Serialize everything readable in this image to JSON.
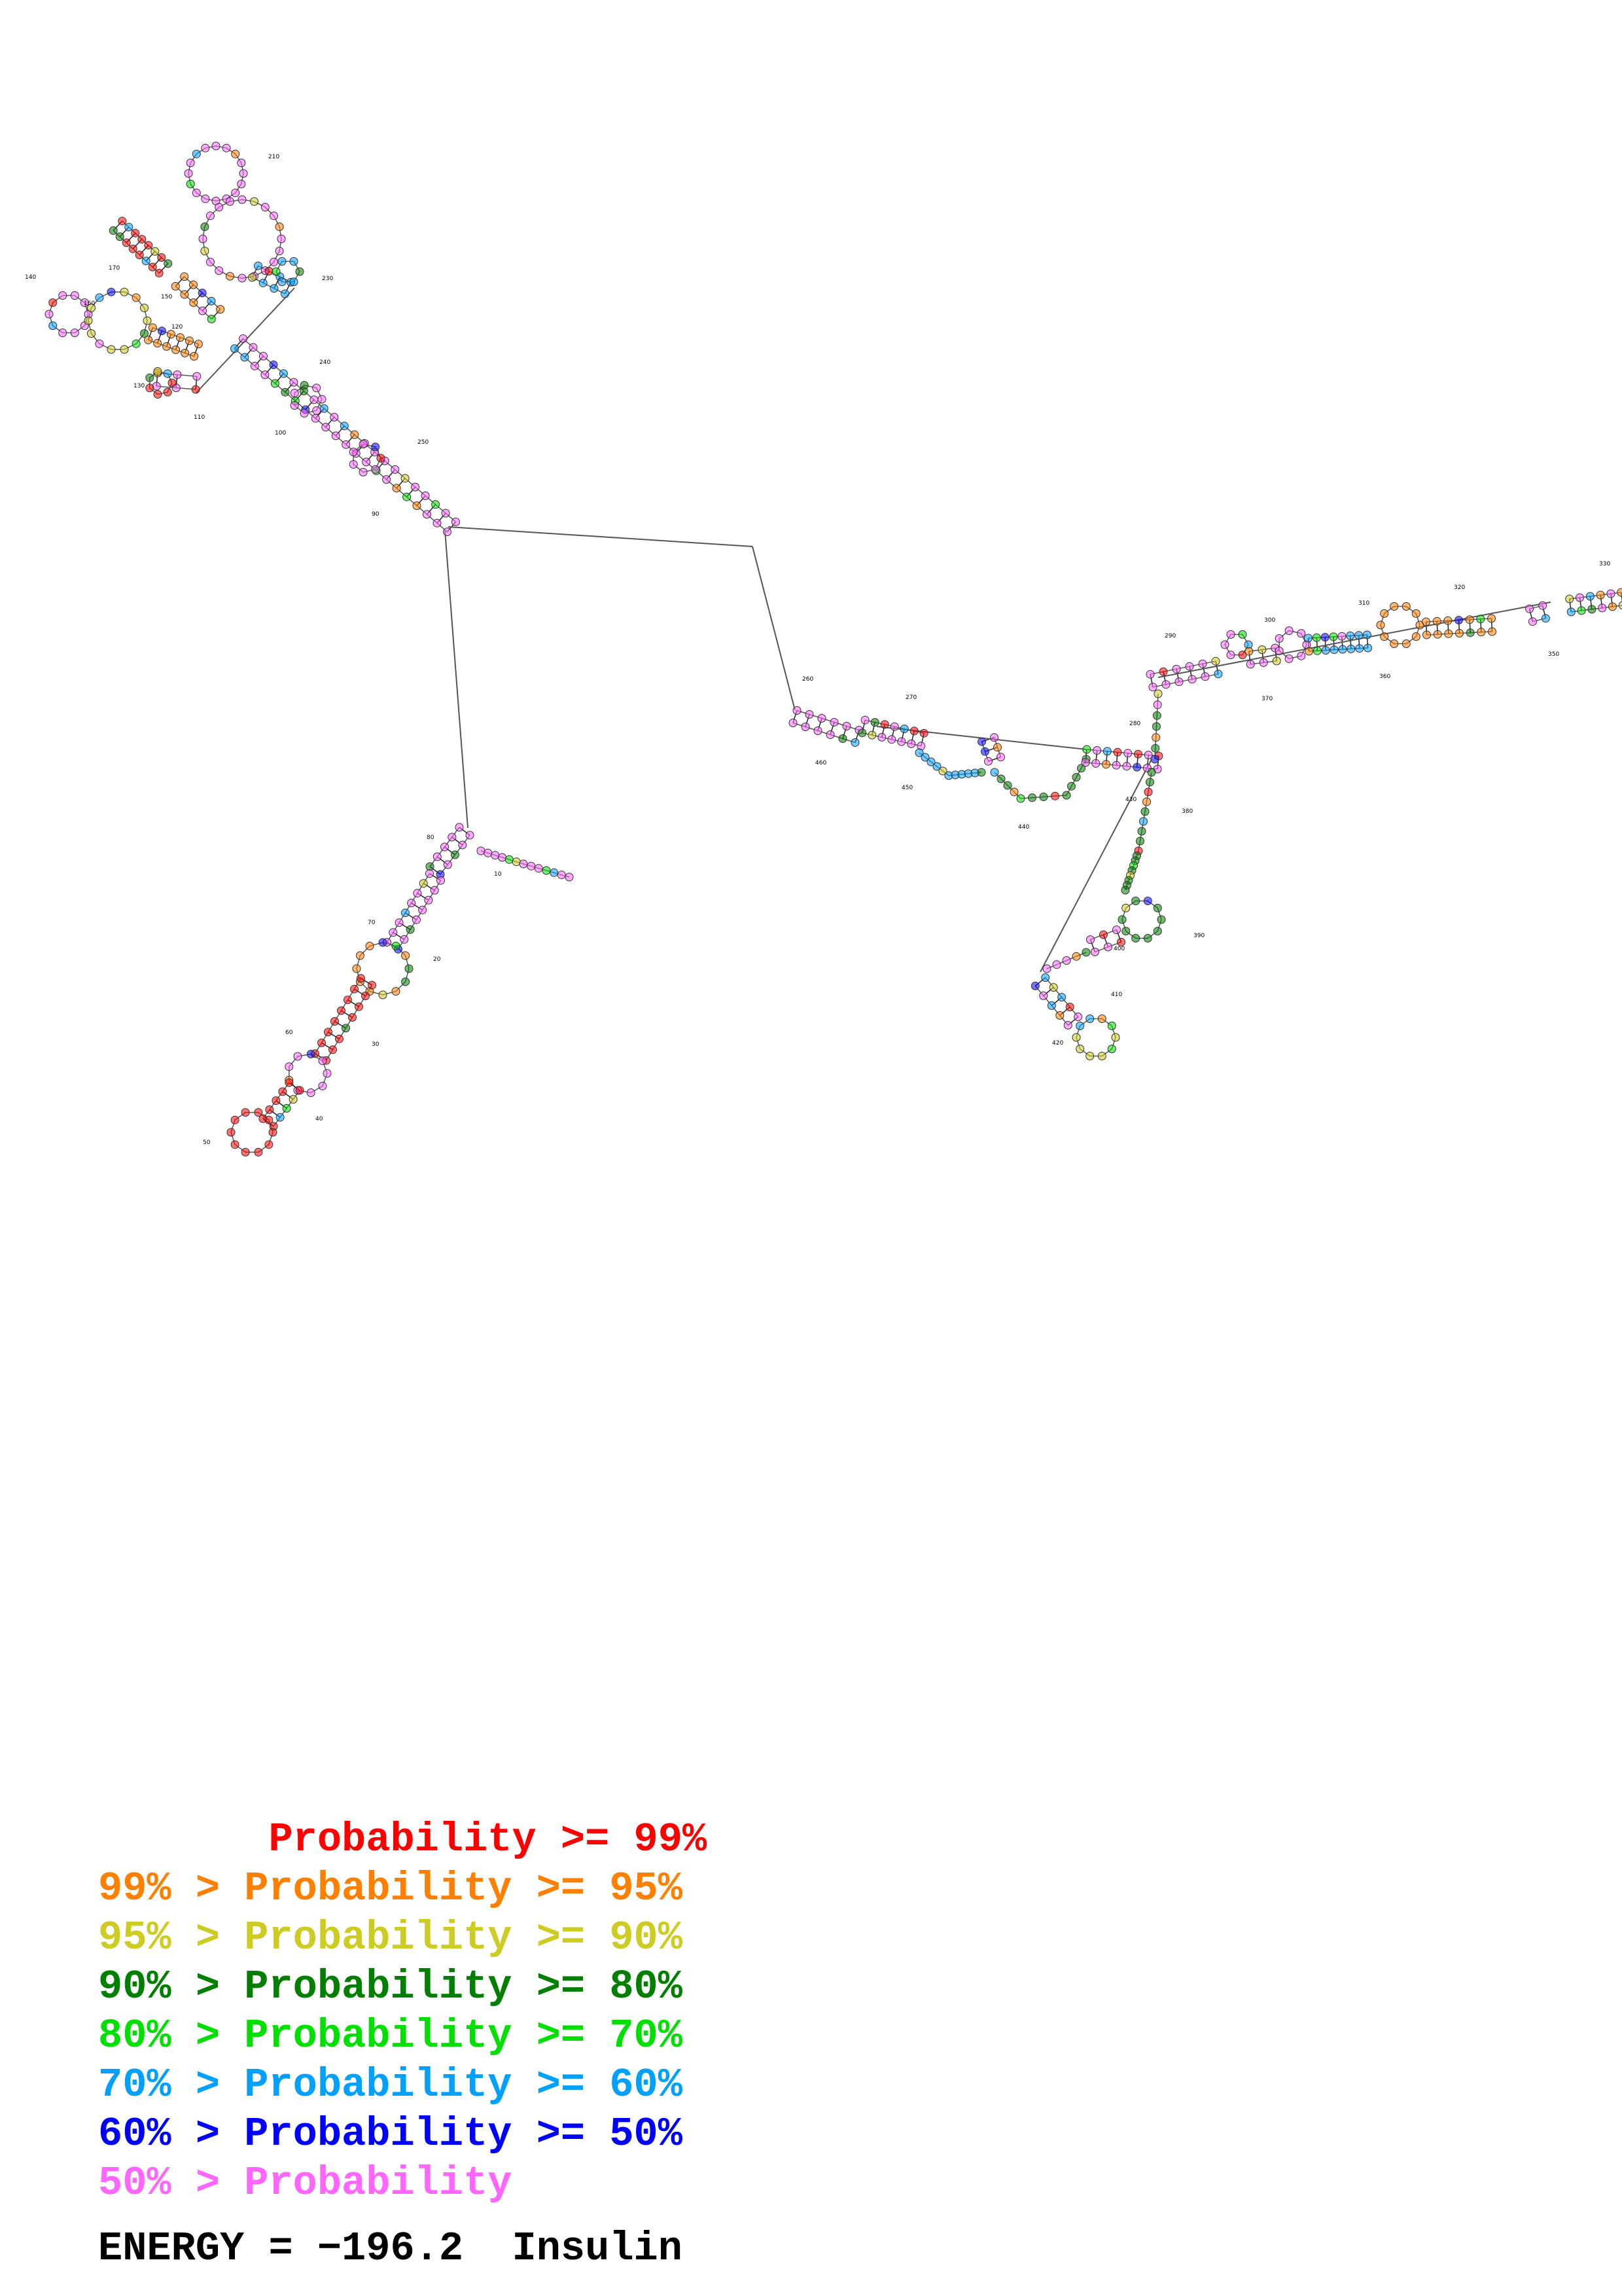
{
  "structure_labels": [
    "10",
    "20",
    "30",
    "40",
    "50",
    "60",
    "70",
    "80",
    "90",
    "100",
    "110",
    "120",
    "130",
    "140",
    "150",
    "160",
    "170",
    "210",
    "230",
    "240",
    "250",
    "260",
    "270",
    "280",
    "290",
    "300",
    "310",
    "320",
    "330",
    "350",
    "360",
    "370",
    "380",
    "390",
    "400",
    "410",
    "420",
    "430",
    "440",
    "450",
    "460"
  ],
  "legend": {
    "items": [
      {
        "text": "       Probability >= 99%",
        "color": "#ff0000"
      },
      {
        "text": "99% > Probability >= 95%",
        "color": "#ff7f00"
      },
      {
        "text": "95% > Probability >= 90%",
        "color": "#cccc22"
      },
      {
        "text": "90% > Probability >= 80%",
        "color": "#007f00"
      },
      {
        "text": "80% > Probability >= 70%",
        "color": "#00e000"
      },
      {
        "text": "70% > Probability >= 60%",
        "color": "#00a0ff"
      },
      {
        "text": "60% > Probability >= 50%",
        "color": "#0000ff"
      },
      {
        "text": "50% > Probability",
        "color": "#ff66ff"
      }
    ]
  },
  "energy_line": "ENERGY = −196.2  Insulin"
}
